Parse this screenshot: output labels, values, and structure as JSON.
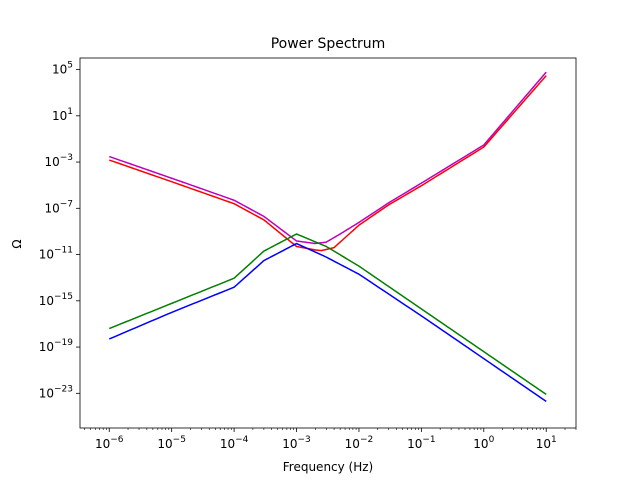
{
  "chart_data": {
    "type": "line",
    "title": "Power Spectrum",
    "xlabel": "Frequency (Hz)",
    "ylabel": "Ω",
    "xscale": "log",
    "yscale": "log",
    "xlim": [
      3.4e-07,
      30
    ],
    "ylim": [
      1e-26,
      1000000.0
    ],
    "grid": false,
    "legend": "none",
    "x_ticks": [
      {
        "value": 1e-06,
        "base": "10",
        "exp": "−6"
      },
      {
        "value": 1e-05,
        "base": "10",
        "exp": "−5"
      },
      {
        "value": 0.0001,
        "base": "10",
        "exp": "−4"
      },
      {
        "value": 0.001,
        "base": "10",
        "exp": "−3"
      },
      {
        "value": 0.01,
        "base": "10",
        "exp": "−2"
      },
      {
        "value": 0.1,
        "base": "10",
        "exp": "−1"
      },
      {
        "value": 1,
        "base": "10",
        "exp": "0"
      },
      {
        "value": 10,
        "base": "10",
        "exp": "1"
      }
    ],
    "y_ticks": [
      {
        "value": 1e-23,
        "base": "10",
        "exp": "−23"
      },
      {
        "value": 1e-19,
        "base": "10",
        "exp": "−19"
      },
      {
        "value": 1e-15,
        "base": "10",
        "exp": "−15"
      },
      {
        "value": 1e-11,
        "base": "10",
        "exp": "−11"
      },
      {
        "value": 1e-07,
        "base": "10",
        "exp": "−7"
      },
      {
        "value": 0.001,
        "base": "10",
        "exp": "−3"
      },
      {
        "value": 10,
        "base": "10",
        "exp": "1"
      },
      {
        "value": 100000.0,
        "base": "10",
        "exp": "5"
      }
    ],
    "series": [
      {
        "color": "#bf00bf",
        "x": [
          1e-06,
          1e-05,
          0.0001,
          0.0003,
          0.001,
          0.002,
          0.003,
          0.005,
          0.01,
          0.03,
          0.1,
          1,
          10
        ],
        "y": [
          0.003,
          4e-05,
          5e-07,
          2e-08,
          1.5e-10,
          9e-11,
          1.2e-10,
          6e-10,
          6e-09,
          3e-07,
          1.5e-05,
          0.03,
          60000.0
        ]
      },
      {
        "color": "#ff0000",
        "x": [
          1e-06,
          1e-05,
          0.0001,
          0.0003,
          0.001,
          0.002,
          0.0025,
          0.004,
          0.01,
          0.03,
          0.1,
          1,
          10
        ],
        "y": [
          0.0015,
          2e-05,
          2.5e-07,
          1e-08,
          5e-11,
          2.5e-11,
          2.2e-11,
          4e-11,
          3.5e-09,
          2e-07,
          9e-06,
          0.02,
          30000.0
        ]
      },
      {
        "color": "#008000",
        "x": [
          1e-06,
          1e-05,
          0.0001,
          0.0003,
          0.001,
          0.003,
          0.01,
          0.1,
          1,
          10
        ],
        "y": [
          4e-18,
          6e-16,
          9e-14,
          2e-11,
          6e-10,
          5e-11,
          1e-12,
          2e-16,
          4e-20,
          8e-24
        ]
      },
      {
        "color": "#0000ff",
        "x": [
          1e-06,
          1e-05,
          0.0001,
          0.0003,
          0.001,
          0.003,
          0.01,
          0.1,
          1,
          10
        ],
        "y": [
          5e-19,
          1e-16,
          1.5e-14,
          3e-12,
          9e-11,
          6e-12,
          2e-13,
          5e-17,
          1e-20,
          2e-24
        ]
      }
    ]
  }
}
